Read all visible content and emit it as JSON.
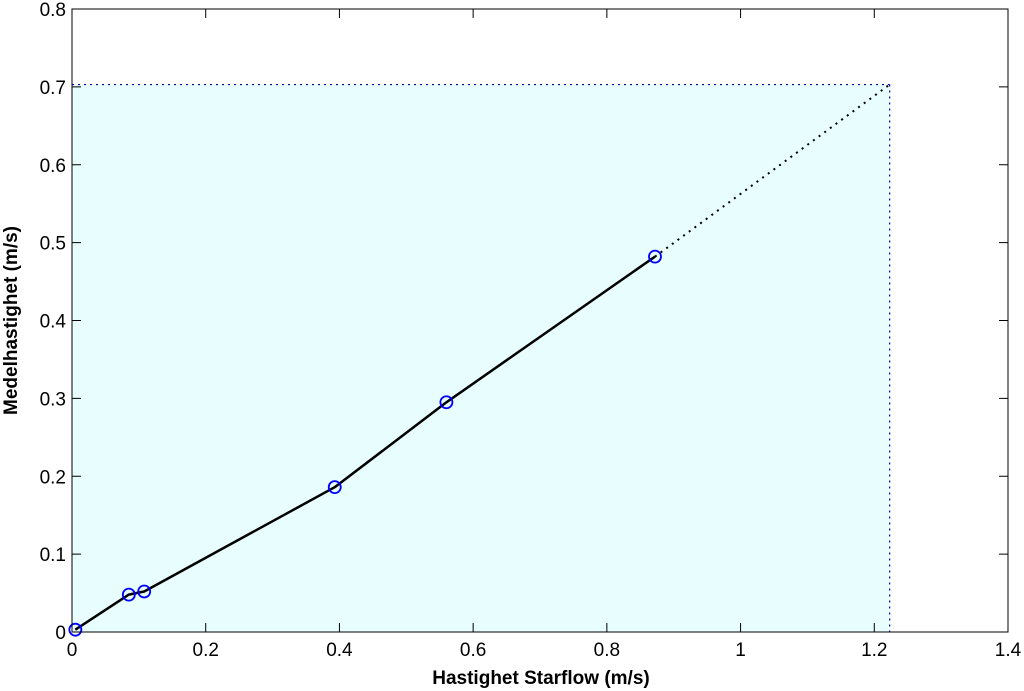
{
  "chart_data": {
    "type": "line",
    "title": "",
    "xlabel": "Hastighet Starflow (m/s)",
    "ylabel": "Medelhastighet (m/s)",
    "xlim": [
      0,
      1.4
    ],
    "ylim": [
      0,
      0.8
    ],
    "x_ticks": [
      "0",
      "0.2",
      "0.4",
      "0.6",
      "0.8",
      "1",
      "1.2",
      "1.4"
    ],
    "y_ticks": [
      "0",
      "0.1",
      "0.2",
      "0.3",
      "0.4",
      "0.5",
      "0.6",
      "0.7",
      "0.8"
    ],
    "grid": false,
    "legend": "none",
    "series": [
      {
        "style": "solid-line-with-circle-markers",
        "line_color": "#000000",
        "marker_color": "#0000ff",
        "points": [
          {
            "x": 0.005,
            "y": 0.003
          },
          {
            "x": 0.085,
            "y": 0.048
          },
          {
            "x": 0.108,
            "y": 0.052
          },
          {
            "x": 0.393,
            "y": 0.186
          },
          {
            "x": 0.56,
            "y": 0.295
          },
          {
            "x": 0.872,
            "y": 0.482
          }
        ]
      }
    ],
    "extrapolation": {
      "style": "dotted",
      "color": "#000000",
      "from": {
        "x": 0.872,
        "y": 0.482
      },
      "to": {
        "x": 1.223,
        "y": 0.703
      }
    },
    "reference_lines": {
      "style": "dotted",
      "color": "#0000aa",
      "x": 1.223,
      "y": 0.703
    },
    "shaded_region": {
      "color": "#e8fdfd",
      "x": [
        0,
        1.223
      ],
      "y": [
        0,
        0.703
      ]
    }
  }
}
